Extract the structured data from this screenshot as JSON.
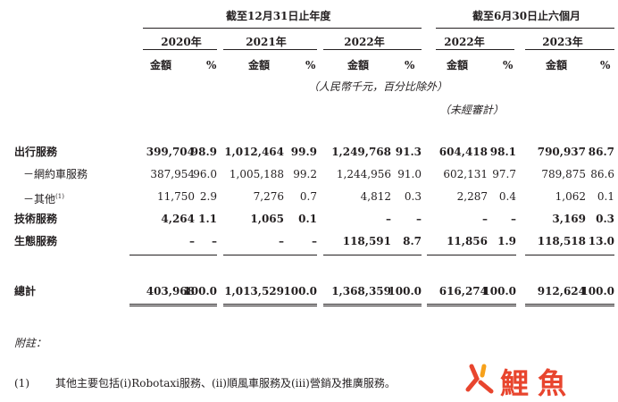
{
  "header": {
    "period_fy": "截至12月31日止年度",
    "period_6m": "截至6月30日止六個月",
    "years": [
      "2020年",
      "2021年",
      "2022年",
      "2022年",
      "2023年"
    ],
    "amount_label": "金額",
    "pct_label": "%",
    "unit_note": "（人民幣千元，百分比除外）",
    "unaudited_note": "（未經審計）"
  },
  "rows": [
    {
      "label": "出行服務",
      "bold": true,
      "values": [
        "399,704",
        "98.9",
        "1,012,464",
        "99.9",
        "1,249,768",
        "91.3",
        "604,418",
        "98.1",
        "790,937",
        "86.7"
      ]
    },
    {
      "label": "－網約車服務",
      "bold": false,
      "values": [
        "387,954",
        "96.0",
        "1,005,188",
        "99.2",
        "1,244,956",
        "91.0",
        "602,131",
        "97.7",
        "789,875",
        "86.6"
      ]
    },
    {
      "label": "－其他",
      "sup": "(1)",
      "bold": false,
      "values": [
        "11,750",
        "2.9",
        "7,276",
        "0.7",
        "4,812",
        "0.3",
        "2,287",
        "0.4",
        "1,062",
        "0.1"
      ]
    },
    {
      "label": "技術服務",
      "bold": true,
      "values": [
        "4,264",
        "1.1",
        "1,065",
        "0.1",
        "–",
        "–",
        "–",
        "–",
        "3,169",
        "0.3"
      ]
    },
    {
      "label": "生態服務",
      "bold": true,
      "values": [
        "–",
        "–",
        "–",
        "–",
        "118,591",
        "8.7",
        "11,856",
        "1.9",
        "118,518",
        "13.0"
      ]
    }
  ],
  "total": {
    "label": "總計",
    "values": [
      "403,968",
      "100.0",
      "1,013,529",
      "100.0",
      "1,368,359",
      "100.0",
      "616,274",
      "100.0",
      "912,624",
      "100.0"
    ]
  },
  "notes": {
    "heading": "附註：",
    "items": [
      {
        "num": "(1)",
        "text": "其他主要包括(i)Robotaxi服務、(ii)順風車服務及(iii)營銷及推廣服務。"
      }
    ]
  },
  "watermark": {
    "text": "鯉魚",
    "colors": [
      "#e8452e",
      "#f7a11a",
      "#e8452e"
    ]
  }
}
